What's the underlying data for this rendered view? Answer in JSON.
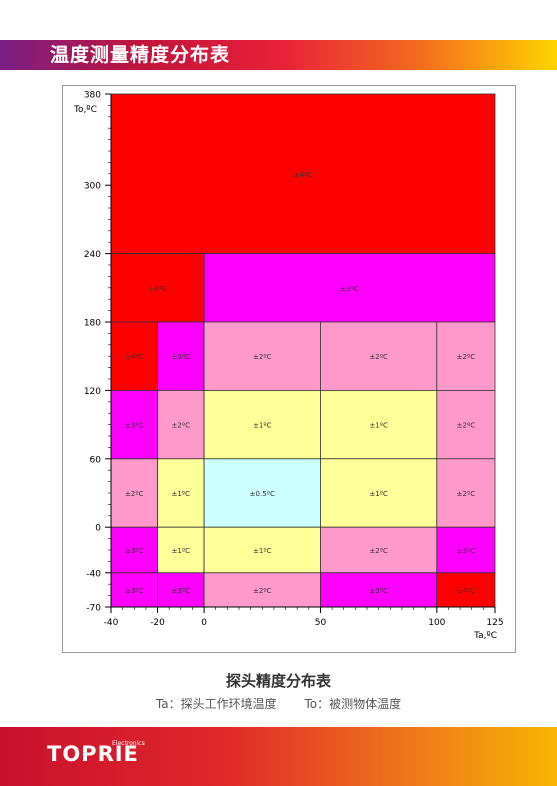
{
  "header": {
    "title": "温度测量精度分布表"
  },
  "caption": {
    "title": "探头精度分布表",
    "legend_ta": "Ta：探头工作环境温度",
    "legend_to": "To：被测物体温度"
  },
  "footer": {
    "logo": "TOPRIE",
    "logo_sub": "Electronics"
  },
  "chart_data": {
    "type": "heatmap",
    "xlabel": "Ta,ºC",
    "ylabel": "To,ºC",
    "xlim": [
      -40,
      125
    ],
    "ylim": [
      -70,
      380
    ],
    "x_ticks": [
      -40,
      -20,
      0,
      50,
      100,
      125
    ],
    "y_ticks": [
      -70,
      -40,
      0,
      60,
      120,
      180,
      240,
      300,
      380
    ],
    "colors": {
      "±4ºC": "#ff0000",
      "±3ºC": "#ff00ff",
      "±2ºC": "#ff99cc",
      "±1ºC": "#ffff99",
      "±0.5ºC": "#ccffff"
    },
    "cells": [
      {
        "x0": -40,
        "x1": 125,
        "y0": 240,
        "y1": 380,
        "label": "±4ºC"
      },
      {
        "x0": -40,
        "x1": 0,
        "y0": 180,
        "y1": 240,
        "label": "±4ºC"
      },
      {
        "x0": 0,
        "x1": 125,
        "y0": 180,
        "y1": 240,
        "label": "±3ºC"
      },
      {
        "x0": -40,
        "x1": -20,
        "y0": 120,
        "y1": 180,
        "label": "±4ºC"
      },
      {
        "x0": -20,
        "x1": 0,
        "y0": 120,
        "y1": 180,
        "label": "±3ºC"
      },
      {
        "x0": 0,
        "x1": 50,
        "y0": 120,
        "y1": 180,
        "label": "±2ºC"
      },
      {
        "x0": 50,
        "x1": 100,
        "y0": 120,
        "y1": 180,
        "label": "±2ºC"
      },
      {
        "x0": 100,
        "x1": 125,
        "y0": 120,
        "y1": 180,
        "label": "±2ºC"
      },
      {
        "x0": -40,
        "x1": -20,
        "y0": 60,
        "y1": 120,
        "label": "±3ºC"
      },
      {
        "x0": -20,
        "x1": 0,
        "y0": 60,
        "y1": 120,
        "label": "±2ºC"
      },
      {
        "x0": 0,
        "x1": 50,
        "y0": 60,
        "y1": 120,
        "label": "±1ºC"
      },
      {
        "x0": 50,
        "x1": 100,
        "y0": 60,
        "y1": 120,
        "label": "±1ºC"
      },
      {
        "x0": 100,
        "x1": 125,
        "y0": 60,
        "y1": 120,
        "label": "±2ºC"
      },
      {
        "x0": -40,
        "x1": -20,
        "y0": 0,
        "y1": 60,
        "label": "±2ºC"
      },
      {
        "x0": -20,
        "x1": 0,
        "y0": 0,
        "y1": 60,
        "label": "±1ºC"
      },
      {
        "x0": 0,
        "x1": 50,
        "y0": 0,
        "y1": 60,
        "label": "±0.5ºC"
      },
      {
        "x0": 50,
        "x1": 100,
        "y0": 0,
        "y1": 60,
        "label": "±1ºC"
      },
      {
        "x0": 100,
        "x1": 125,
        "y0": 0,
        "y1": 60,
        "label": "±2ºC"
      },
      {
        "x0": -40,
        "x1": -20,
        "y0": -40,
        "y1": 0,
        "label": "±3ºC"
      },
      {
        "x0": -20,
        "x1": 0,
        "y0": -40,
        "y1": 0,
        "label": "±1ºC"
      },
      {
        "x0": 0,
        "x1": 50,
        "y0": -40,
        "y1": 0,
        "label": "±1ºC"
      },
      {
        "x0": 50,
        "x1": 100,
        "y0": -40,
        "y1": 0,
        "label": "±2ºC"
      },
      {
        "x0": 100,
        "x1": 125,
        "y0": -40,
        "y1": 0,
        "label": "±3ºC"
      },
      {
        "x0": -40,
        "x1": -20,
        "y0": -70,
        "y1": -40,
        "label": "±3ºC"
      },
      {
        "x0": -20,
        "x1": 0,
        "y0": -70,
        "y1": -40,
        "label": "±3ºC"
      },
      {
        "x0": 0,
        "x1": 50,
        "y0": -70,
        "y1": -40,
        "label": "±2ºC"
      },
      {
        "x0": 50,
        "x1": 100,
        "y0": -70,
        "y1": -40,
        "label": "±3ºC"
      },
      {
        "x0": 100,
        "x1": 125,
        "y0": -70,
        "y1": -40,
        "label": "±4ºC"
      }
    ]
  }
}
